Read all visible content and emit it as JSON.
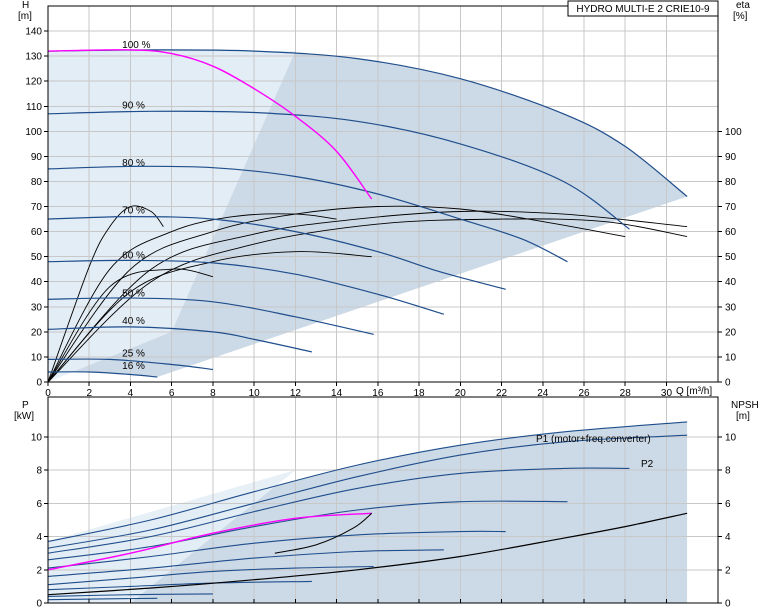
{
  "chart_data": [
    {
      "type": "line",
      "model_label": "HYDRO MULTI-E 2 CRIE10-9",
      "y_left_label": "H",
      "y_left_unit": "[m]",
      "y_right_label": "eta",
      "y_right_unit": "[%]",
      "x_label": "Q [m³/h]",
      "xlim": [
        0,
        32.5
      ],
      "ylim": [
        0,
        150
      ],
      "x_ticks": [
        0,
        2,
        4,
        6,
        8,
        10,
        12,
        14,
        16,
        18,
        20,
        22,
        24,
        26,
        28,
        30
      ],
      "y_left_ticks": [
        0,
        10,
        20,
        30,
        40,
        50,
        60,
        70,
        80,
        90,
        100,
        110,
        120,
        130,
        140
      ],
      "y_right_ticks": [
        0,
        10,
        20,
        30,
        40,
        50,
        60,
        70,
        80,
        90,
        100
      ],
      "colors": {
        "curve": "#1f4e8c",
        "highlight": "#ff00ff",
        "envelope": "#ccd9e6",
        "envelope_light": "#e6eef6",
        "eta": "#000000"
      },
      "series": [
        {
          "name": "100 %",
          "label_pos": [
            3.5,
            132
          ],
          "points": [
            [
              0,
              132
            ],
            [
              5,
              132.5
            ],
            [
              10,
              132
            ],
            [
              15,
              129
            ],
            [
              20,
              121
            ],
            [
              25,
              107
            ],
            [
              28,
              94
            ],
            [
              31,
              74
            ]
          ]
        },
        {
          "name": "90 %",
          "label_pos": [
            3.5,
            108
          ],
          "points": [
            [
              0,
              107
            ],
            [
              5,
              108
            ],
            [
              10,
              107.5
            ],
            [
              15,
              104
            ],
            [
              20,
              95
            ],
            [
              25,
              80
            ],
            [
              28.2,
              61
            ]
          ]
        },
        {
          "name": "80 %",
          "label_pos": [
            3.5,
            85
          ],
          "points": [
            [
              0,
              85
            ],
            [
              4,
              86
            ],
            [
              8,
              85.5
            ],
            [
              12,
              82
            ],
            [
              16,
              75
            ],
            [
              20,
              65
            ],
            [
              23,
              57
            ],
            [
              25.2,
              48
            ]
          ]
        },
        {
          "name": "70 %",
          "label_pos": [
            3.5,
            66
          ],
          "points": [
            [
              0,
              65
            ],
            [
              4,
              66
            ],
            [
              8,
              65
            ],
            [
              12,
              60
            ],
            [
              16,
              52
            ],
            [
              19,
              44
            ],
            [
              22.2,
              37
            ]
          ]
        },
        {
          "name": "60 %",
          "label_pos": [
            3.5,
            48
          ],
          "points": [
            [
              0,
              48
            ],
            [
              4,
              48.5
            ],
            [
              8,
              47.5
            ],
            [
              12,
              43
            ],
            [
              16,
              35
            ],
            [
              19.2,
              27
            ]
          ]
        },
        {
          "name": "50 %",
          "label_pos": [
            3.5,
            33
          ],
          "points": [
            [
              0,
              33
            ],
            [
              4,
              33.5
            ],
            [
              8,
              32
            ],
            [
              12,
              26
            ],
            [
              15.8,
              19
            ]
          ]
        },
        {
          "name": "40 %",
          "label_pos": [
            3.5,
            22
          ],
          "points": [
            [
              0,
              21
            ],
            [
              4,
              22
            ],
            [
              8,
              20
            ],
            [
              10,
              17
            ],
            [
              12.8,
              12
            ]
          ]
        },
        {
          "name": "25 %",
          "label_pos": [
            3.5,
            9
          ],
          "points": [
            [
              0,
              9
            ],
            [
              3,
              9
            ],
            [
              6,
              7
            ],
            [
              8,
              5
            ]
          ]
        },
        {
          "name": "16 %",
          "label_pos": [
            3.5,
            4
          ],
          "points": [
            [
              0,
              4
            ],
            [
              2,
              4
            ],
            [
              4,
              3
            ],
            [
              5.3,
              2
            ]
          ]
        }
      ],
      "highlight_curve": {
        "points": [
          [
            0,
            132
          ],
          [
            4,
            132.5
          ],
          [
            6,
            131
          ],
          [
            8,
            126
          ],
          [
            10,
            117
          ],
          [
            12,
            106
          ],
          [
            14,
            92
          ],
          [
            15.7,
            73
          ]
        ]
      },
      "eta_curves": [
        {
          "points": [
            [
              0,
              0
            ],
            [
              2,
              46
            ],
            [
              3,
              62
            ],
            [
              4,
              70
            ],
            [
              5,
              68
            ],
            [
              5.6,
              62
            ]
          ]
        },
        {
          "points": [
            [
              0,
              0
            ],
            [
              3,
              45
            ],
            [
              6,
              60
            ],
            [
              9,
              66
            ],
            [
              12,
              67
            ],
            [
              14,
              65
            ]
          ]
        },
        {
          "points": [
            [
              0,
              0
            ],
            [
              4,
              45
            ],
            [
              8,
              60
            ],
            [
              12,
              67
            ],
            [
              16,
              70
            ],
            [
              20,
              69
            ],
            [
              24,
              64
            ],
            [
              28,
              58
            ]
          ]
        },
        {
          "points": [
            [
              0,
              0
            ],
            [
              5,
              45
            ],
            [
              10,
              59
            ],
            [
              15,
              65
            ],
            [
              20,
              68
            ],
            [
              25,
              67
            ],
            [
              31,
              62
            ]
          ]
        },
        {
          "points": [
            [
              0,
              0
            ],
            [
              5,
              40
            ],
            [
              10,
              55
            ],
            [
              16,
              63
            ],
            [
              22,
              65
            ],
            [
              27,
              64
            ],
            [
              31,
              58
            ]
          ]
        },
        {
          "points": [
            [
              0,
              0
            ],
            [
              4,
              36
            ],
            [
              8,
              48
            ],
            [
              12,
              52
            ],
            [
              15.7,
              50
            ]
          ]
        },
        {
          "points": [
            [
              0,
              0
            ],
            [
              3,
              38
            ],
            [
              6,
              45
            ],
            [
              8,
              42
            ]
          ]
        }
      ]
    },
    {
      "type": "line",
      "y_left_label": "P",
      "y_left_unit": "[kW]",
      "y_right_label": "NPSH",
      "y_right_unit": "[m]",
      "xlim": [
        0,
        32.5
      ],
      "ylim": [
        0,
        12.4
      ],
      "y_left_ticks": [
        0,
        2,
        4,
        6,
        8,
        10
      ],
      "y_right_ticks": [
        0,
        2,
        4,
        6,
        8,
        10
      ],
      "p1_label": "P1 (motor+freq.converter)",
      "p2_label": "P2",
      "series": [
        {
          "name": "P1",
          "points": [
            [
              0,
              3.7
            ],
            [
              5,
              5
            ],
            [
              10,
              6.7
            ],
            [
              15,
              8.3
            ],
            [
              20,
              9.5
            ],
            [
              25,
              10.3
            ],
            [
              31,
              10.9
            ]
          ]
        },
        {
          "name": "P2",
          "points": [
            [
              0,
              3.3
            ],
            [
              5,
              4.4
            ],
            [
              10,
              6
            ],
            [
              15,
              7.6
            ],
            [
              20,
              8.9
            ],
            [
              25,
              9.7
            ],
            [
              31,
              10.1
            ]
          ]
        },
        {
          "points": [
            [
              0,
              3
            ],
            [
              5,
              4
            ],
            [
              10,
              5.5
            ],
            [
              15,
              6.9
            ],
            [
              20,
              7.8
            ],
            [
              25,
              8.1
            ],
            [
              28.2,
              8.1
            ]
          ]
        },
        {
          "points": [
            [
              0,
              2.6
            ],
            [
              5,
              3.4
            ],
            [
              10,
              4.6
            ],
            [
              15,
              5.6
            ],
            [
              20,
              6.1
            ],
            [
              25.2,
              6.1
            ]
          ]
        },
        {
          "points": [
            [
              0,
              2.1
            ],
            [
              5,
              2.8
            ],
            [
              10,
              3.6
            ],
            [
              15,
              4.1
            ],
            [
              20,
              4.3
            ],
            [
              22.2,
              4.3
            ]
          ]
        },
        {
          "points": [
            [
              0,
              1.6
            ],
            [
              5,
              2.1
            ],
            [
              10,
              2.7
            ],
            [
              15,
              3.1
            ],
            [
              19.2,
              3.2
            ]
          ]
        },
        {
          "points": [
            [
              0,
              1.1
            ],
            [
              4,
              1.5
            ],
            [
              8,
              1.9
            ],
            [
              12,
              2.1
            ],
            [
              15.8,
              2.2
            ]
          ]
        },
        {
          "points": [
            [
              0,
              0.8
            ],
            [
              4,
              1.0
            ],
            [
              8,
              1.2
            ],
            [
              12.8,
              1.3
            ]
          ]
        },
        {
          "points": [
            [
              0,
              0.4
            ],
            [
              4,
              0.5
            ],
            [
              8,
              0.55
            ]
          ]
        },
        {
          "points": [
            [
              0,
              0.2
            ],
            [
              3,
              0.25
            ],
            [
              5.3,
              0.28
            ]
          ]
        }
      ],
      "highlight_curve": {
        "points": [
          [
            0,
            2
          ],
          [
            4,
            3
          ],
          [
            8,
            4.2
          ],
          [
            12,
            5.1
          ],
          [
            15.7,
            5.4
          ]
        ]
      },
      "npsh_curve": {
        "points": [
          [
            0,
            0.5
          ],
          [
            5,
            0.9
          ],
          [
            10,
            1.4
          ],
          [
            15,
            2
          ],
          [
            20,
            2.8
          ],
          [
            25,
            3.9
          ],
          [
            28,
            4.6
          ],
          [
            31,
            5.4
          ]
        ]
      },
      "npsh_branch": {
        "points": [
          [
            11,
            3
          ],
          [
            13,
            3.5
          ],
          [
            14.8,
            4.5
          ],
          [
            15.7,
            5.4
          ]
        ]
      }
    }
  ]
}
